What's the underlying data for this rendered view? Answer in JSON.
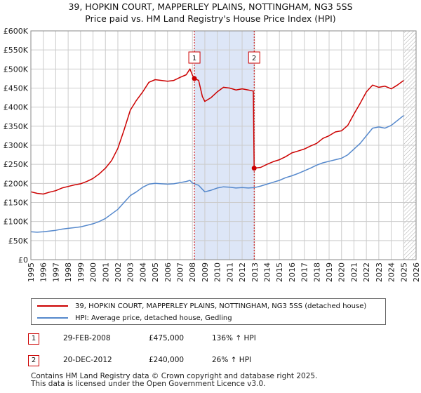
{
  "chart_data": {
    "type": "line",
    "title": "39, HOPKIN COURT, MAPPERLEY PLAINS, NOTTINGHAM, NG3 5SS",
    "subtitle": "Price paid vs. HM Land Registry's House Price Index (HPI)",
    "x_ticks": [
      "1995",
      "1996",
      "1997",
      "1998",
      "1999",
      "2000",
      "2001",
      "2002",
      "2003",
      "2004",
      "2005",
      "2006",
      "2007",
      "2008",
      "2009",
      "2010",
      "2011",
      "2012",
      "2013",
      "2014",
      "2015",
      "2016",
      "2017",
      "2018",
      "2019",
      "2020",
      "2021",
      "2022",
      "2023",
      "2024",
      "2025",
      "2026"
    ],
    "y_ticks": [
      "£0",
      "£50K",
      "£100K",
      "£150K",
      "£200K",
      "£250K",
      "£300K",
      "£350K",
      "£400K",
      "£450K",
      "£500K",
      "£550K",
      "£600K"
    ],
    "xlim": [
      1995,
      2026
    ],
    "ylim": [
      0,
      600000
    ],
    "shaded_period": [
      2008.16,
      2012.97
    ],
    "future_hatch_from": 2025.0,
    "series": [
      {
        "name": "39, HOPKIN COURT, MAPPERLEY PLAINS, NOTTINGHAM, NG3 5SS (detached house)",
        "color": "#cc0000",
        "x": [
          1995.0,
          1995.5,
          1996.0,
          1996.5,
          1997.0,
          1997.5,
          1998.0,
          1998.5,
          1999.0,
          1999.5,
          2000.0,
          2000.5,
          2001.0,
          2001.5,
          2002.0,
          2002.5,
          2003.0,
          2003.5,
          2004.0,
          2004.5,
          2005.0,
          2005.5,
          2006.0,
          2006.5,
          2007.0,
          2007.5,
          2007.8,
          2008.0,
          2008.16,
          2008.5,
          2008.8,
          2009.0,
          2009.5,
          2010.0,
          2010.5,
          2011.0,
          2011.5,
          2012.0,
          2012.5,
          2012.9,
          2012.97,
          2013.5,
          2014.0,
          2014.5,
          2015.0,
          2015.5,
          2016.0,
          2016.5,
          2017.0,
          2017.5,
          2018.0,
          2018.5,
          2019.0,
          2019.5,
          2020.0,
          2020.5,
          2021.0,
          2021.5,
          2022.0,
          2022.5,
          2023.0,
          2023.5,
          2024.0,
          2024.5,
          2025.0
        ],
        "y": [
          178000,
          174000,
          172000,
          177000,
          181000,
          188000,
          192000,
          196000,
          199000,
          205000,
          213000,
          225000,
          240000,
          260000,
          292000,
          340000,
          392000,
          418000,
          440000,
          465000,
          472000,
          470000,
          468000,
          470000,
          478000,
          485000,
          500000,
          484000,
          475000,
          470000,
          428000,
          415000,
          425000,
          440000,
          452000,
          450000,
          445000,
          448000,
          445000,
          442000,
          240000,
          242000,
          250000,
          257000,
          262000,
          270000,
          280000,
          285000,
          290000,
          298000,
          305000,
          318000,
          325000,
          335000,
          338000,
          352000,
          382000,
          410000,
          440000,
          458000,
          452000,
          455000,
          448000,
          458000,
          470000
        ]
      },
      {
        "name": "HPI: Average price, detached house, Gedling",
        "color": "#5588cc",
        "x": [
          1995.0,
          1995.5,
          1996.0,
          1996.5,
          1997.0,
          1997.5,
          1998.0,
          1998.5,
          1999.0,
          1999.5,
          2000.0,
          2000.5,
          2001.0,
          2001.5,
          2002.0,
          2002.5,
          2003.0,
          2003.5,
          2004.0,
          2004.5,
          2005.0,
          2005.5,
          2006.0,
          2006.5,
          2007.0,
          2007.5,
          2007.8,
          2008.0,
          2008.5,
          2009.0,
          2009.5,
          2010.0,
          2010.5,
          2011.0,
          2011.5,
          2012.0,
          2012.5,
          2013.0,
          2013.5,
          2014.0,
          2014.5,
          2015.0,
          2015.5,
          2016.0,
          2016.5,
          2017.0,
          2017.5,
          2018.0,
          2018.5,
          2019.0,
          2019.5,
          2020.0,
          2020.5,
          2021.0,
          2021.5,
          2022.0,
          2022.5,
          2023.0,
          2023.5,
          2024.0,
          2024.5,
          2025.0
        ],
        "y": [
          73000,
          72000,
          73000,
          75000,
          77000,
          80000,
          82000,
          84000,
          86000,
          90000,
          94000,
          100000,
          108000,
          120000,
          132000,
          150000,
          168000,
          178000,
          190000,
          198000,
          200000,
          199000,
          198000,
          199000,
          202000,
          205000,
          208000,
          201000,
          195000,
          178000,
          182000,
          188000,
          191000,
          190000,
          188000,
          189000,
          188000,
          189000,
          193000,
          198000,
          203000,
          208000,
          215000,
          220000,
          226000,
          233000,
          240000,
          248000,
          254000,
          258000,
          262000,
          266000,
          275000,
          290000,
          305000,
          325000,
          345000,
          348000,
          345000,
          352000,
          365000,
          378000
        ]
      }
    ],
    "annotations": [
      {
        "label": "1",
        "x": 2008.16,
        "y": 475000
      },
      {
        "label": "2",
        "x": 2012.97,
        "y": 240000
      }
    ]
  },
  "legend": {
    "property": "39, HOPKIN COURT, MAPPERLEY PLAINS, NOTTINGHAM, NG3 5SS (detached house)",
    "hpi": "HPI: Average price, detached house, Gedling"
  },
  "sales": [
    {
      "num": "1",
      "date": "29-FEB-2008",
      "price": "£475,000",
      "hpi": "136% ↑ HPI"
    },
    {
      "num": "2",
      "date": "20-DEC-2012",
      "price": "£240,000",
      "hpi": "26% ↑ HPI"
    }
  ],
  "footer": {
    "line1": "Contains HM Land Registry data © Crown copyright and database right 2025.",
    "line2": "This data is licensed under the Open Government Licence v3.0."
  },
  "colors": {
    "property": "#cc0000",
    "hpi": "#5588cc",
    "shade": "#dde6f7",
    "grid": "#cccccc"
  }
}
